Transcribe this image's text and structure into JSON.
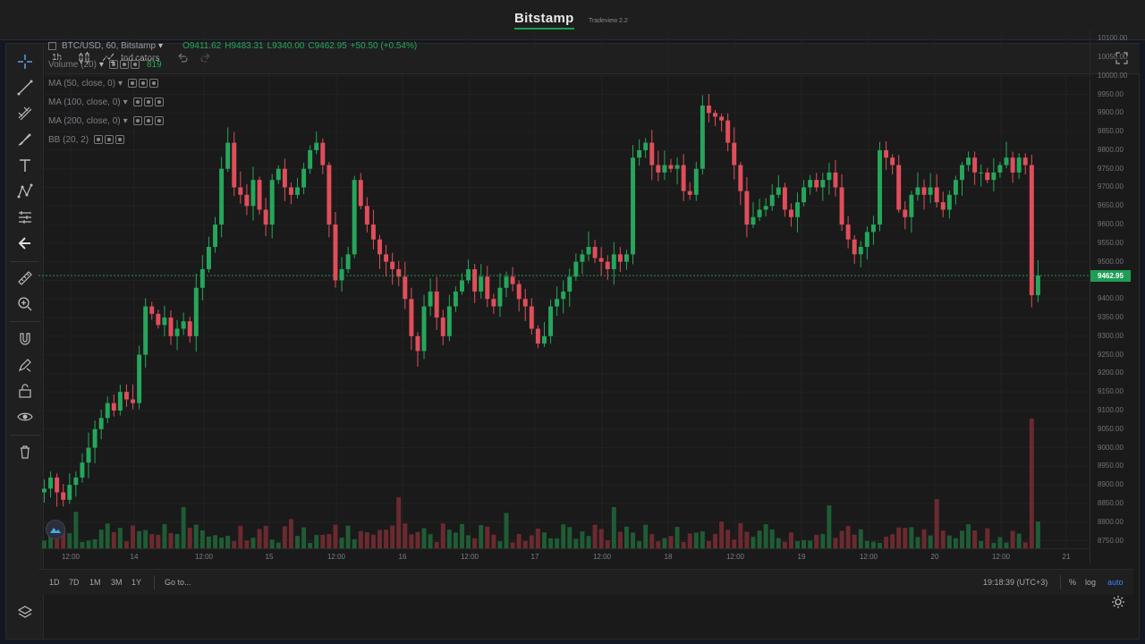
{
  "site": {
    "brand": "Bitstamp",
    "version": "Tradeview 2.2"
  },
  "toolbar": {
    "interval": "1h",
    "indicators_label": "Indicators"
  },
  "legend": {
    "symbol": "BTC/USD, 60, Bitstamp",
    "open": "O9411.62",
    "high": "H9483.31",
    "low": "L9340.00",
    "close": "C9462.95",
    "change": "+50.50 (+0.54%)",
    "volume_label": "Volume (20)",
    "volume_value": "819",
    "ma50": "MA (50, close, 0)",
    "ma100": "MA (100, close, 0)",
    "ma200": "MA (200, close, 0)",
    "bb": "BB (20, 2)"
  },
  "price_scale": {
    "ticks": [
      "10100.00",
      "10050.00",
      "10000.00",
      "9950.00",
      "9900.00",
      "9850.00",
      "9800.00",
      "9750.00",
      "9700.00",
      "9650.00",
      "9600.00",
      "9550.00",
      "9500.00",
      "9450.00",
      "9400.00",
      "9350.00",
      "9300.00",
      "9250.00",
      "9200.00",
      "9150.00",
      "9100.00",
      "9050.00",
      "9000.00",
      "8950.00",
      "8900.00",
      "8850.00",
      "8800.00",
      "8750.00"
    ],
    "current_price": "9462.95"
  },
  "time_axis": {
    "labels": [
      "12:00",
      "14",
      "12:00",
      "15",
      "12:00",
      "16",
      "12:00",
      "17",
      "12:00",
      "18",
      "12:00",
      "19",
      "12:00",
      "20",
      "12:00",
      "21"
    ]
  },
  "bottom_toolbar": {
    "ranges": [
      "1D",
      "7D",
      "1M",
      "3M",
      "1Y"
    ],
    "goto_label": "Go to...",
    "clock": "19:18:39 (UTC+3)",
    "percent": "%",
    "log": "log",
    "auto": "auto"
  },
  "colors": {
    "up": "#26a65b",
    "down": "#e04e5b",
    "accent": "#16a34a",
    "background": "#1a1a1a"
  },
  "chart_data": {
    "type": "candlestick",
    "ylim": [
      8720,
      10110
    ],
    "price_line": 9462.95,
    "candles_close": [
      8890,
      8920,
      8880,
      8860,
      8900,
      8920,
      8960,
      9000,
      9050,
      9080,
      9120,
      9100,
      9150,
      9130,
      9120,
      9250,
      9380,
      9360,
      9330,
      9350,
      9300,
      9320,
      9340,
      9300,
      9430,
      9480,
      9540,
      9600,
      9750,
      9820,
      9700,
      9680,
      9650,
      9720,
      9640,
      9600,
      9720,
      9750,
      9700,
      9680,
      9700,
      9750,
      9800,
      9820,
      9760,
      9600,
      9450,
      9480,
      9520,
      9720,
      9650,
      9600,
      9560,
      9520,
      9500,
      9480,
      9460,
      9400,
      9300,
      9260,
      9380,
      9420,
      9350,
      9300,
      9380,
      9420,
      9450,
      9480,
      9420,
      9460,
      9400,
      9380,
      9430,
      9460,
      9440,
      9400,
      9380,
      9320,
      9280,
      9300,
      9380,
      9400,
      9420,
      9460,
      9500,
      9520,
      9540,
      9510,
      9500,
      9480,
      9520,
      9500,
      9520,
      9780,
      9800,
      9820,
      9760,
      9740,
      9760,
      9750,
      9760,
      9690,
      9680,
      9750,
      9920,
      9900,
      9890,
      9880,
      9820,
      9760,
      9690,
      9600,
      9620,
      9640,
      9650,
      9680,
      9700,
      9640,
      9620,
      9660,
      9700,
      9720,
      9700,
      9720,
      9740,
      9700,
      9600,
      9560,
      9520,
      9540,
      9580,
      9600,
      9800,
      9780,
      9760,
      9640,
      9620,
      9680,
      9700,
      9680,
      9700,
      9660,
      9640,
      9680,
      9720,
      9760,
      9780,
      9740,
      9740,
      9720,
      9740,
      9760,
      9780,
      9740,
      9780,
      9760,
      9410,
      9463
    ],
    "volume_note": "volume bars rendered at bottom of chart"
  }
}
